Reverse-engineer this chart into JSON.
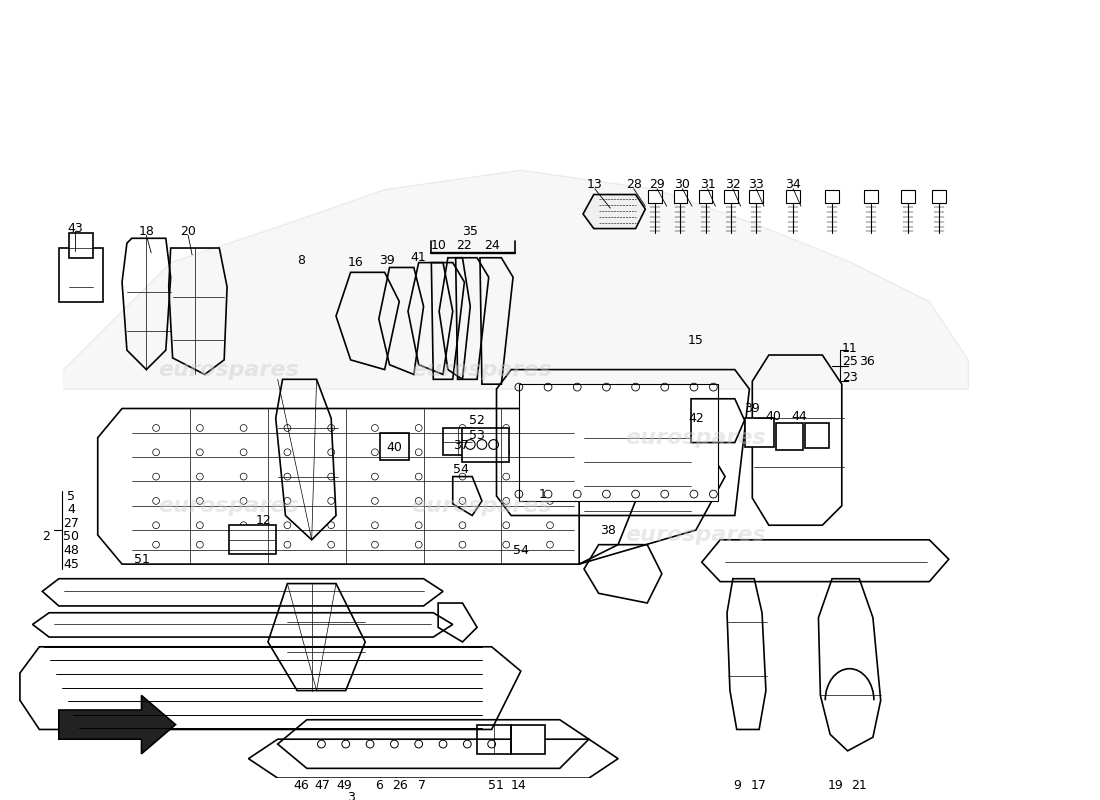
{
  "background_color": "#ffffff",
  "watermark_text": "eurospares",
  "line_color": "#000000",
  "text_color": "#000000",
  "font_size_labels": 9
}
